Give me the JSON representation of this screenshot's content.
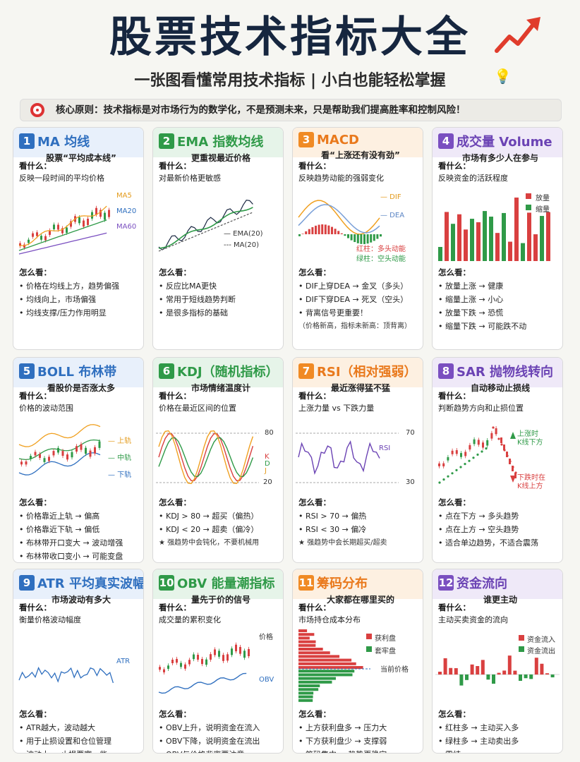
{
  "title": "股票技术指标大全",
  "subtitle": "一张图看懂常用技术指标 | 小白也能轻松掌握",
  "principle": "核心原则：技术指标是对市场行为的数学化，不是预测未来，只是帮助我们提高胜率和控制风险！",
  "colors": {
    "blue": "#2f6fbf",
    "green": "#2f9a48",
    "orange": "#f08a24",
    "purple": "#7a4fc0",
    "red": "#d94040"
  },
  "what_label": "看什么：",
  "how_label": "怎么看：",
  "cards": [
    {
      "num": "1",
      "name": "MA 均线",
      "sub": "股票“平均成本线”",
      "what": "反映一段时间的平均价格",
      "labels": [
        "MA5",
        "MA20",
        "MA60"
      ],
      "points": [
        "价格在均线上方，趋势偏强",
        "均线向上，市场偏强",
        "均线支撑/压力作用明显"
      ]
    },
    {
      "num": "2",
      "name": "EMA 指数均线",
      "sub": "更重视最近价格",
      "what": "对最新价格更敏感",
      "labels": [
        "— EMA(20)",
        "--- MA(20)"
      ],
      "points": [
        "反应比MA更快",
        "常用于短线趋势判断",
        "是很多指标的基础"
      ]
    },
    {
      "num": "3",
      "name": "MACD",
      "sub": "看“上涨还有没有劲”",
      "what": "反映趋势动能的强弱变化",
      "labels": [
        "— DIF",
        "— DEA",
        "红柱：多头动能",
        "绿柱：空头动能"
      ],
      "points": [
        "DIF上穿DEA → 金叉（多头）",
        "DIF下穿DEA → 死叉（空头）",
        "背离信号更重要！"
      ],
      "note": "（价格新高，指标未新高：顶背离）"
    },
    {
      "num": "4",
      "name": "成交量 Volume",
      "sub": "市场有多少人在参与",
      "what": "反映资金的活跃程度",
      "labels": [
        "放量",
        "缩量"
      ],
      "points": [
        "放量上涨 → 健康",
        "缩量上涨 → 小心",
        "放量下跌 → 恐慌",
        "缩量下跌 → 可能跌不动"
      ]
    },
    {
      "num": "5",
      "name": "BOLL 布林带",
      "sub": "看股价是否涨太多",
      "what": "价格的波动范围",
      "labels": [
        "— 上轨",
        "— 中轨",
        "— 下轨"
      ],
      "points": [
        "价格靠近上轨 → 偏高",
        "价格靠近下轨 → 偏低",
        "布林带开口变大 → 波动增强",
        "布林带收口变小 → 可能变盘"
      ]
    },
    {
      "num": "6",
      "name": "KDJ（随机指标）",
      "sub": "市场情绪温度计",
      "what": "价格在最近区间的位置",
      "labels": [
        "80",
        "K",
        "D",
        "J",
        "20"
      ],
      "points": [
        "KDJ > 80 → 超买（偏热）",
        "KDJ < 20 → 超卖（偏冷）"
      ],
      "note": "★ 强趋势中会钝化，不要机械用"
    },
    {
      "num": "7",
      "name": "RSI（相对强弱）",
      "sub": "最近涨得猛不猛",
      "what": "上涨力量 vs 下跌力量",
      "labels": [
        "70",
        "RSI",
        "30"
      ],
      "points": [
        "RSI > 70 → 偏热",
        "RSI < 30 → 偏冷"
      ],
      "note": "★ 强趋势中会长期超买/超卖"
    },
    {
      "num": "8",
      "name": "SAR 抛物线转向",
      "sub": "自动移动止损线",
      "what": "判断趋势方向和止损位置",
      "labels": [
        "上涨时",
        "K线下方",
        "下跌时在",
        "K线上方"
      ],
      "points": [
        "点在下方 → 多头趋势",
        "点在上方 → 空头趋势",
        "适合单边趋势，不适合震荡"
      ]
    },
    {
      "num": "9",
      "name": "ATR 平均真实波幅",
      "sub": "市场波动有多大",
      "what": "衡量价格波动幅度",
      "labels": [
        "ATR"
      ],
      "points": [
        "ATR越大，波动越大",
        "用于止损设置和仓位管理",
        "波动大 → 止损要宽一些"
      ]
    },
    {
      "num": "10",
      "name": "OBV 能量潮指标",
      "sub": "量先于价的信号",
      "what": "成交量的累积变化",
      "labels": [
        "价格",
        "OBV"
      ],
      "points": [
        "OBV上升，说明资金在流入",
        "OBV下降，说明资金在流出",
        "OBV与价格背离要注意"
      ]
    },
    {
      "num": "11",
      "name": "筹码分布",
      "sub": "大家都在哪里买的",
      "what": "市场持仓成本分布",
      "labels": [
        "获利盘",
        "套牢盘",
        "当前价格"
      ],
      "points": [
        "上方获利盘多 → 压力大",
        "下方获利盘少 → 支撑弱",
        "筹码集中 → 趋势更稳定"
      ]
    },
    {
      "num": "12",
      "name": "资金流向",
      "sub": "谁更主动",
      "what": "主动买卖资金的流向",
      "labels": [
        "资金流入",
        "资金流出"
      ],
      "points": [
        "红柱多 → 主动买入多",
        "绿柱多 → 主动卖出多",
        "需结"
      ]
    }
  ]
}
